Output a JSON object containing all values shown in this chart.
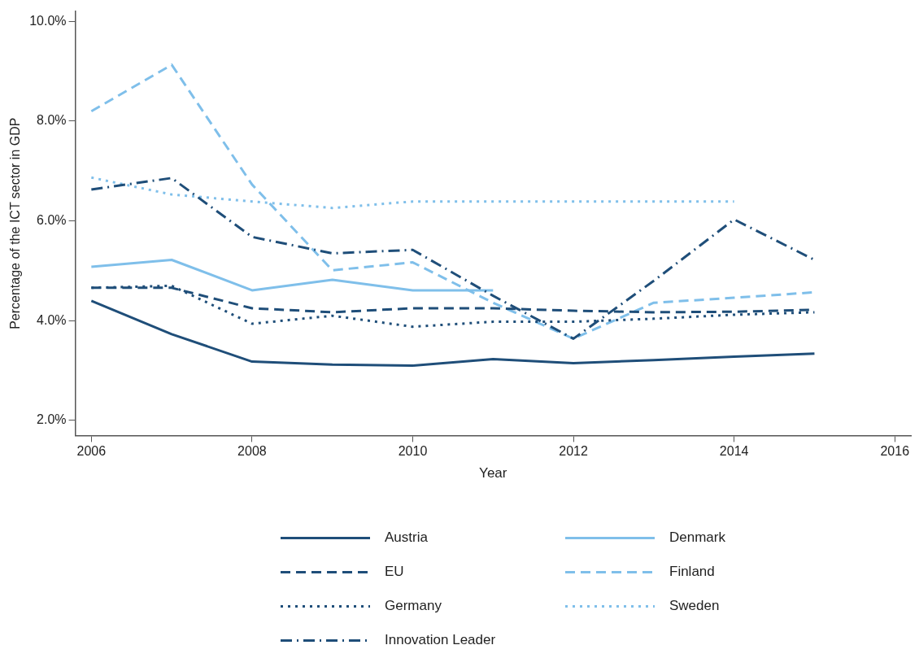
{
  "chart_data": {
    "type": "line",
    "xlabel": "Year",
    "ylabel": "Percentage of the ICT sector in GDP",
    "x": [
      2006,
      2007,
      2008,
      2009,
      2010,
      2011,
      2012,
      2013,
      2014,
      2015
    ],
    "xlim": [
      2005.8,
      2016.2
    ],
    "xticks": [
      2006,
      2008,
      2010,
      2012,
      2014,
      2016
    ],
    "ylim": [
      1.7,
      10.2
    ],
    "yticks": [
      {
        "value": 2,
        "label": "2.0%"
      },
      {
        "value": 4,
        "label": "4.0%"
      },
      {
        "value": 6,
        "label": "6.0%"
      },
      {
        "value": 8,
        "label": "8.0%"
      },
      {
        "value": 10,
        "label": "10.0%"
      }
    ],
    "grid": false,
    "legend": "bottom",
    "marker": "none",
    "series": [
      {
        "name": "Austria",
        "color": "#1f4e79",
        "line_style": "solid",
        "values": [
          4.4,
          3.73,
          3.18,
          3.12,
          3.1,
          3.23,
          3.15,
          3.21,
          3.28,
          3.34
        ]
      },
      {
        "name": "EU",
        "color": "#1f4e79",
        "line_style": "dashed",
        "values": [
          4.66,
          4.66,
          4.25,
          4.17,
          4.25,
          4.25,
          4.2,
          4.17,
          4.18,
          4.22
        ]
      },
      {
        "name": "Germany",
        "color": "#1f4e79",
        "line_style": "dotted",
        "values": [
          4.66,
          4.7,
          3.94,
          4.1,
          3.88,
          3.98,
          3.98,
          4.04,
          4.12,
          4.17
        ]
      },
      {
        "name": "Innovation Leader",
        "color": "#1f4e79",
        "line_style": "dashdot",
        "values": [
          6.63,
          6.86,
          5.68,
          5.35,
          5.42,
          4.5,
          3.64,
          4.8,
          6.03,
          5.22
        ]
      },
      {
        "name": "Denmark",
        "color": "#7fbfea",
        "line_style": "solid",
        "values": [
          5.08,
          5.22,
          4.61,
          4.82,
          4.61,
          4.61,
          null,
          null,
          null,
          null
        ]
      },
      {
        "name": "Finland",
        "color": "#7fbfea",
        "line_style": "dashed",
        "values": [
          8.2,
          9.13,
          6.73,
          5.01,
          5.17,
          4.36,
          3.64,
          4.36,
          4.46,
          4.57
        ]
      },
      {
        "name": "Sweden",
        "color": "#7fbfea",
        "line_style": "dotted",
        "values": [
          6.87,
          6.53,
          6.39,
          6.26,
          6.39,
          6.39,
          6.39,
          6.39,
          6.39,
          null
        ]
      }
    ]
  }
}
